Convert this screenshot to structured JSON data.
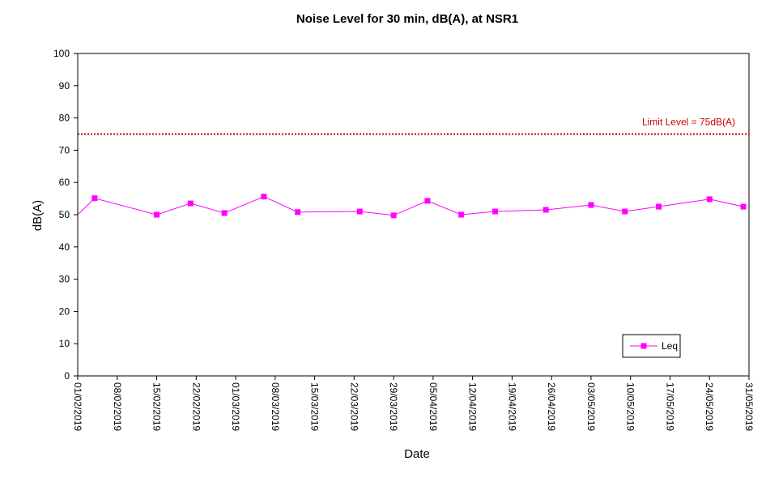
{
  "chart_data": {
    "type": "line",
    "title": "Noise Level for 30 min, dB(A), at NSR1",
    "xlabel": "Date",
    "ylabel": "dB(A)",
    "ylim": [
      0,
      100
    ],
    "yticks": [
      0,
      10,
      20,
      30,
      40,
      50,
      60,
      70,
      80,
      90,
      100
    ],
    "xlim": [
      "2019-02-01",
      "2019-05-31"
    ],
    "xtick_labels": [
      "01/02/2019",
      "08/02/2019",
      "15/02/2019",
      "22/02/2019",
      "01/03/2019",
      "08/03/2019",
      "15/03/2019",
      "22/03/2019",
      "29/03/2019",
      "05/04/2019",
      "12/04/2019",
      "19/04/2019",
      "26/04/2019",
      "03/05/2019",
      "10/05/2019",
      "17/05/2019",
      "24/05/2019",
      "31/05/2019"
    ],
    "grid": false,
    "legend_position": "bottom-right",
    "series": [
      {
        "name": "Leq",
        "color": "#ff00ff",
        "marker": "square",
        "points": [
          {
            "x": "2019-02-01",
            "y": 50.0
          },
          {
            "x": "2019-02-04",
            "y": 55.1
          },
          {
            "x": "2019-02-15",
            "y": 50.0
          },
          {
            "x": "2019-02-21",
            "y": 53.5
          },
          {
            "x": "2019-02-27",
            "y": 50.5
          },
          {
            "x": "2019-03-06",
            "y": 55.6
          },
          {
            "x": "2019-03-12",
            "y": 50.8
          },
          {
            "x": "2019-03-23",
            "y": 51.0
          },
          {
            "x": "2019-03-29",
            "y": 49.8
          },
          {
            "x": "2019-04-04",
            "y": 54.3
          },
          {
            "x": "2019-04-10",
            "y": 50.0
          },
          {
            "x": "2019-04-16",
            "y": 51.0
          },
          {
            "x": "2019-04-25",
            "y": 51.5
          },
          {
            "x": "2019-05-03",
            "y": 53.0
          },
          {
            "x": "2019-05-09",
            "y": 51.0
          },
          {
            "x": "2019-05-15",
            "y": 52.5
          },
          {
            "x": "2019-05-24",
            "y": 54.8
          },
          {
            "x": "2019-05-30",
            "y": 52.5
          }
        ]
      }
    ],
    "reference_line": {
      "label": "Limit Level  = 75dB(A)",
      "value": 75,
      "color": "#cc0000",
      "style": "dotted"
    }
  }
}
